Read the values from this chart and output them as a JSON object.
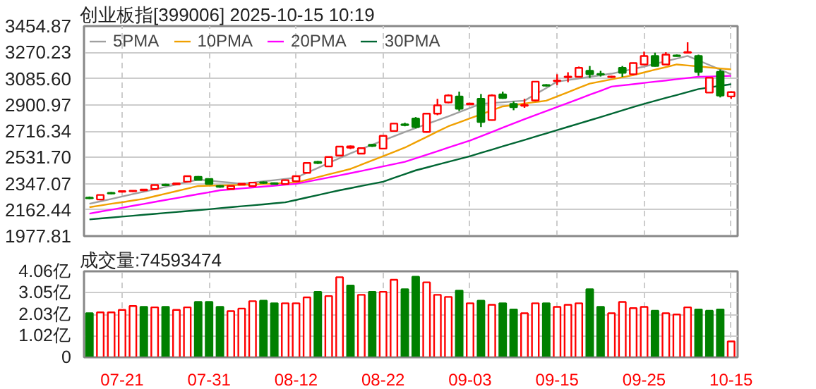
{
  "chart_data": [
    {
      "type": "candlestick",
      "title": "创业板指[399006] 2025-10-15 10:19",
      "categories": [
        null,
        null,
        null,
        null,
        null,
        null,
        null,
        null,
        null,
        null,
        null,
        null,
        null,
        null,
        null,
        null,
        null,
        null,
        null,
        null,
        null,
        null,
        null,
        null,
        null,
        null,
        null,
        null,
        null,
        null,
        null,
        null,
        null,
        null,
        null,
        null,
        null,
        null,
        null,
        null,
        null,
        null,
        null,
        null,
        null,
        null,
        null,
        null,
        null,
        null,
        null,
        null,
        null,
        null,
        null,
        null,
        null,
        null,
        null,
        null
      ],
      "ohlc": [
        [
          2248,
          2256,
          2238,
          2244
        ],
        [
          2235,
          2270,
          2230,
          2267
        ],
        [
          2282,
          2288,
          2272,
          2277
        ],
        [
          2290,
          2298,
          2284,
          2294
        ],
        [
          2293,
          2300,
          2288,
          2297
        ],
        [
          2300,
          2308,
          2294,
          2305
        ],
        [
          2309,
          2340,
          2306,
          2337
        ],
        [
          2340,
          2346,
          2330,
          2336
        ],
        [
          2342,
          2352,
          2338,
          2348
        ],
        [
          2360,
          2402,
          2356,
          2399
        ],
        [
          2395,
          2400,
          2370,
          2373
        ],
        [
          2380,
          2384,
          2340,
          2344
        ],
        [
          2330,
          2336,
          2318,
          2325
        ],
        [
          2309,
          2332,
          2305,
          2330
        ],
        [
          2340,
          2350,
          2336,
          2346
        ],
        [
          2330,
          2356,
          2327,
          2354
        ],
        [
          2356,
          2362,
          2345,
          2352
        ],
        [
          2350,
          2355,
          2340,
          2344
        ],
        [
          2344,
          2375,
          2340,
          2371
        ],
        [
          2364,
          2402,
          2360,
          2399
        ],
        [
          2423,
          2495,
          2420,
          2492
        ],
        [
          2500,
          2506,
          2485,
          2492
        ],
        [
          2468,
          2536,
          2465,
          2534
        ],
        [
          2544,
          2610,
          2540,
          2607
        ],
        [
          2600,
          2615,
          2590,
          2609
        ],
        [
          2558,
          2598,
          2555,
          2596
        ],
        [
          2620,
          2625,
          2605,
          2612
        ],
        [
          2593,
          2685,
          2590,
          2683
        ],
        [
          2717,
          2772,
          2712,
          2769
        ],
        [
          2764,
          2775,
          2750,
          2758
        ],
        [
          2804,
          2815,
          2735,
          2745
        ],
        [
          2710,
          2845,
          2705,
          2839
        ],
        [
          2839,
          2943,
          2828,
          2897
        ],
        [
          2918,
          2975,
          2912,
          2967
        ],
        [
          2960,
          2994,
          2858,
          2873
        ],
        [
          2905,
          2915,
          2900,
          2910
        ],
        [
          2943,
          2977,
          2745,
          2780
        ],
        [
          2794,
          2975,
          2790,
          2967
        ],
        [
          2974,
          2994,
          2943,
          2949
        ],
        [
          2908,
          2925,
          2863,
          2884
        ],
        [
          2895,
          2943,
          2880,
          2900
        ],
        [
          2932,
          3066,
          2925,
          3064
        ],
        [
          3040,
          3046,
          3030,
          3036
        ],
        [
          3068,
          3116,
          3040,
          3072
        ],
        [
          3095,
          3130,
          3060,
          3100
        ],
        [
          3098,
          3170,
          3095,
          3161
        ],
        [
          3140,
          3174,
          3090,
          3116
        ],
        [
          3118,
          3140,
          3100,
          3114
        ],
        [
          3096,
          3105,
          3090,
          3100
        ],
        [
          3161,
          3174,
          3098,
          3126
        ],
        [
          3116,
          3198,
          3110,
          3195
        ],
        [
          3185,
          3275,
          3183,
          3244
        ],
        [
          3244,
          3268,
          3170,
          3174
        ],
        [
          3185,
          3271,
          3183,
          3254
        ],
        [
          3248,
          3255,
          3240,
          3244
        ],
        [
          3268,
          3341,
          3265,
          3272
        ],
        [
          3244,
          3254,
          3105,
          3133
        ],
        [
          2987,
          3091,
          2985,
          3091
        ],
        [
          3133,
          3150,
          2953,
          2967
        ],
        [
          2960,
          2996,
          2943,
          2990
        ]
      ],
      "colors": [
        "#008000",
        "#ff0000",
        "#008000",
        "#ff0000",
        "#ff0000",
        "#ff0000",
        "#ff0000",
        "#008000",
        "#ff0000",
        "#ff0000",
        "#008000",
        "#008000",
        "#008000",
        "#ff0000",
        "#ff0000",
        "#ff0000",
        "#008000",
        "#008000",
        "#ff0000",
        "#ff0000",
        "#ff0000",
        "#008000",
        "#ff0000",
        "#ff0000",
        "#ff0000",
        "#ff0000",
        "#008000",
        "#ff0000",
        "#ff0000",
        "#008000",
        "#008000",
        "#ff0000",
        "#ff0000",
        "#ff0000",
        "#008000",
        "#ff0000",
        "#008000",
        "#ff0000",
        "#008000",
        "#008000",
        "#ff0000",
        "#ff0000",
        "#008000",
        "#ff0000",
        "#ff0000",
        "#ff0000",
        "#008000",
        "#008000",
        "#ff0000",
        "#008000",
        "#ff0000",
        "#ff0000",
        "#008000",
        "#ff0000",
        "#008000",
        "#ff0000",
        "#008000",
        "#ff0000",
        "#008000",
        "#ff0000"
      ],
      "series": [
        {
          "name": "5PMA",
          "type": "line",
          "color": "#a0a0a0",
          "values": [
            2205,
            2222,
            2239,
            2256,
            2273,
            2290,
            2307,
            2324,
            2341,
            2358,
            2375,
            2368,
            2360,
            2353,
            2345,
            2354,
            2363,
            2371,
            2380,
            2389,
            2423,
            2457,
            2492,
            2526,
            2560,
            2590,
            2620,
            2650,
            2680,
            2710,
            2738,
            2765,
            2793,
            2820,
            2849,
            2879,
            2908,
            2914,
            2919,
            2925,
            2930,
            2975,
            3019,
            3064,
            3075,
            3086,
            3098,
            3109,
            3120,
            3137,
            3153,
            3170,
            3189,
            3208,
            3226,
            3245,
            3213,
            3181,
            3148,
            3116
          ]
        },
        {
          "name": "10PMA",
          "type": "line",
          "color": "#f0a000",
          "values": [
            2181,
            2193,
            2205,
            2216,
            2228,
            2240,
            2258,
            2276,
            2294,
            2312,
            2330,
            2332,
            2334,
            2336,
            2338,
            2340,
            2344,
            2347,
            2351,
            2354,
            2373,
            2392,
            2412,
            2431,
            2450,
            2480,
            2510,
            2540,
            2570,
            2600,
            2638,
            2675,
            2713,
            2750,
            2778,
            2806,
            2834,
            2862,
            2890,
            2900,
            2910,
            2920,
            2930,
            2960,
            2990,
            3020,
            3050,
            3065,
            3080,
            3095,
            3110,
            3129,
            3148,
            3166,
            3185,
            3178,
            3171,
            3164,
            3157,
            3150
          ]
        },
        {
          "name": "20PMA",
          "type": "line",
          "color": "#ff00ff",
          "values": [
            2136,
            2150,
            2163,
            2177,
            2191,
            2204,
            2218,
            2232,
            2245,
            2259,
            2273,
            2286,
            2300,
            2306,
            2313,
            2319,
            2326,
            2332,
            2339,
            2345,
            2360,
            2375,
            2390,
            2405,
            2420,
            2436,
            2452,
            2468,
            2484,
            2500,
            2525,
            2550,
            2575,
            2600,
            2625,
            2650,
            2680,
            2710,
            2740,
            2770,
            2800,
            2829,
            2857,
            2886,
            2914,
            2943,
            2972,
            3000,
            3029,
            3038,
            3046,
            3055,
            3064,
            3072,
            3081,
            3090,
            3098,
            3100,
            3103,
            3105
          ]
        },
        {
          "name": "30PMA",
          "type": "line",
          "color": "#006633",
          "values": [
            2095,
            2102,
            2108,
            2115,
            2121,
            2128,
            2134,
            2141,
            2147,
            2154,
            2160,
            2167,
            2174,
            2181,
            2188,
            2194,
            2201,
            2208,
            2215,
            2232,
            2249,
            2266,
            2283,
            2300,
            2315,
            2330,
            2345,
            2360,
            2387,
            2413,
            2440,
            2460,
            2480,
            2500,
            2520,
            2540,
            2563,
            2586,
            2609,
            2631,
            2654,
            2677,
            2700,
            2723,
            2746,
            2769,
            2792,
            2815,
            2838,
            2862,
            2885,
            2908,
            2929,
            2950,
            2970,
            2991,
            3012,
            3023,
            3035,
            3046
          ]
        }
      ],
      "ylim": [
        1977.81,
        3454.87
      ],
      "yticks": [
        1977.81,
        2162.44,
        2347.07,
        {
          "value": 2531.7,
          "label": "2531.70"
        },
        2716.34,
        2900.97,
        {
          "value": 3085.6,
          "label": "3085.60"
        },
        3270.23,
        3454.87
      ],
      "grid": true,
      "legend": "top left",
      "tick_labels": "y"
    },
    {
      "type": "bar",
      "title": "成交量:74593474",
      "categories": [
        null,
        null,
        null,
        "07-21",
        null,
        null,
        null,
        null,
        null,
        null,
        null,
        "07-31",
        null,
        null,
        null,
        null,
        null,
        null,
        null,
        "08-12",
        null,
        null,
        null,
        null,
        null,
        null,
        null,
        "08-22",
        null,
        null,
        null,
        null,
        null,
        null,
        null,
        "09-03",
        null,
        null,
        null,
        null,
        null,
        null,
        null,
        "09-15",
        null,
        null,
        null,
        null,
        null,
        null,
        null,
        "09-25",
        null,
        null,
        null,
        null,
        null,
        null,
        null,
        "10-15"
      ],
      "values": [
        2.08,
        2.12,
        2.12,
        2.24,
        2.42,
        2.38,
        2.36,
        2.38,
        2.24,
        2.36,
        2.61,
        2.61,
        2.38,
        2.18,
        2.3,
        2.65,
        2.67,
        2.55,
        2.55,
        2.55,
        2.83,
        3.09,
        2.89,
        3.78,
        3.39,
        2.95,
        3.09,
        3.09,
        3.66,
        3.21,
        3.8,
        3.54,
        2.95,
        2.85,
        3.15,
        2.55,
        2.67,
        2.48,
        2.55,
        2.26,
        2.08,
        2.55,
        2.55,
        2.38,
        2.48,
        2.55,
        3.21,
        2.38,
        2.08,
        2.61,
        2.32,
        2.38,
        2.2,
        2.08,
        2.02,
        2.36,
        2.26,
        2.2,
        2.26,
        0.75
      ],
      "colors": [
        "#008000",
        "#ff0000",
        "#ff0000",
        "#ff0000",
        "#ff0000",
        "#008000",
        "#ff0000",
        "#008000",
        "#ff0000",
        "#ff0000",
        "#008000",
        "#008000",
        "#008000",
        "#ff0000",
        "#ff0000",
        "#ff0000",
        "#008000",
        "#008000",
        "#ff0000",
        "#ff0000",
        "#ff0000",
        "#008000",
        "#ff0000",
        "#ff0000",
        "#008000",
        "#ff0000",
        "#008000",
        "#ff0000",
        "#ff0000",
        "#008000",
        "#008000",
        "#ff0000",
        "#ff0000",
        "#ff0000",
        "#008000",
        "#ff0000",
        "#008000",
        "#ff0000",
        "#008000",
        "#008000",
        "#ff0000",
        "#ff0000",
        "#008000",
        "#ff0000",
        "#ff0000",
        "#ff0000",
        "#008000",
        "#008000",
        "#ff0000",
        "#ff0000",
        "#ff0000",
        "#ff0000",
        "#008000",
        "#ff0000",
        "#ff0000",
        "#ff0000",
        "#008000",
        "#008000",
        "#008000",
        "#ff0000"
      ],
      "ylim": [
        0,
        4.06
      ],
      "yticks": [
        0,
        {
          "value": 1.02,
          "label": "1.02亿"
        },
        {
          "value": 2.03,
          "label": "2.03亿"
        },
        {
          "value": 3.05,
          "label": "3.05亿"
        },
        {
          "value": 4.06,
          "label": "4.06亿"
        }
      ],
      "grid": true
    }
  ]
}
